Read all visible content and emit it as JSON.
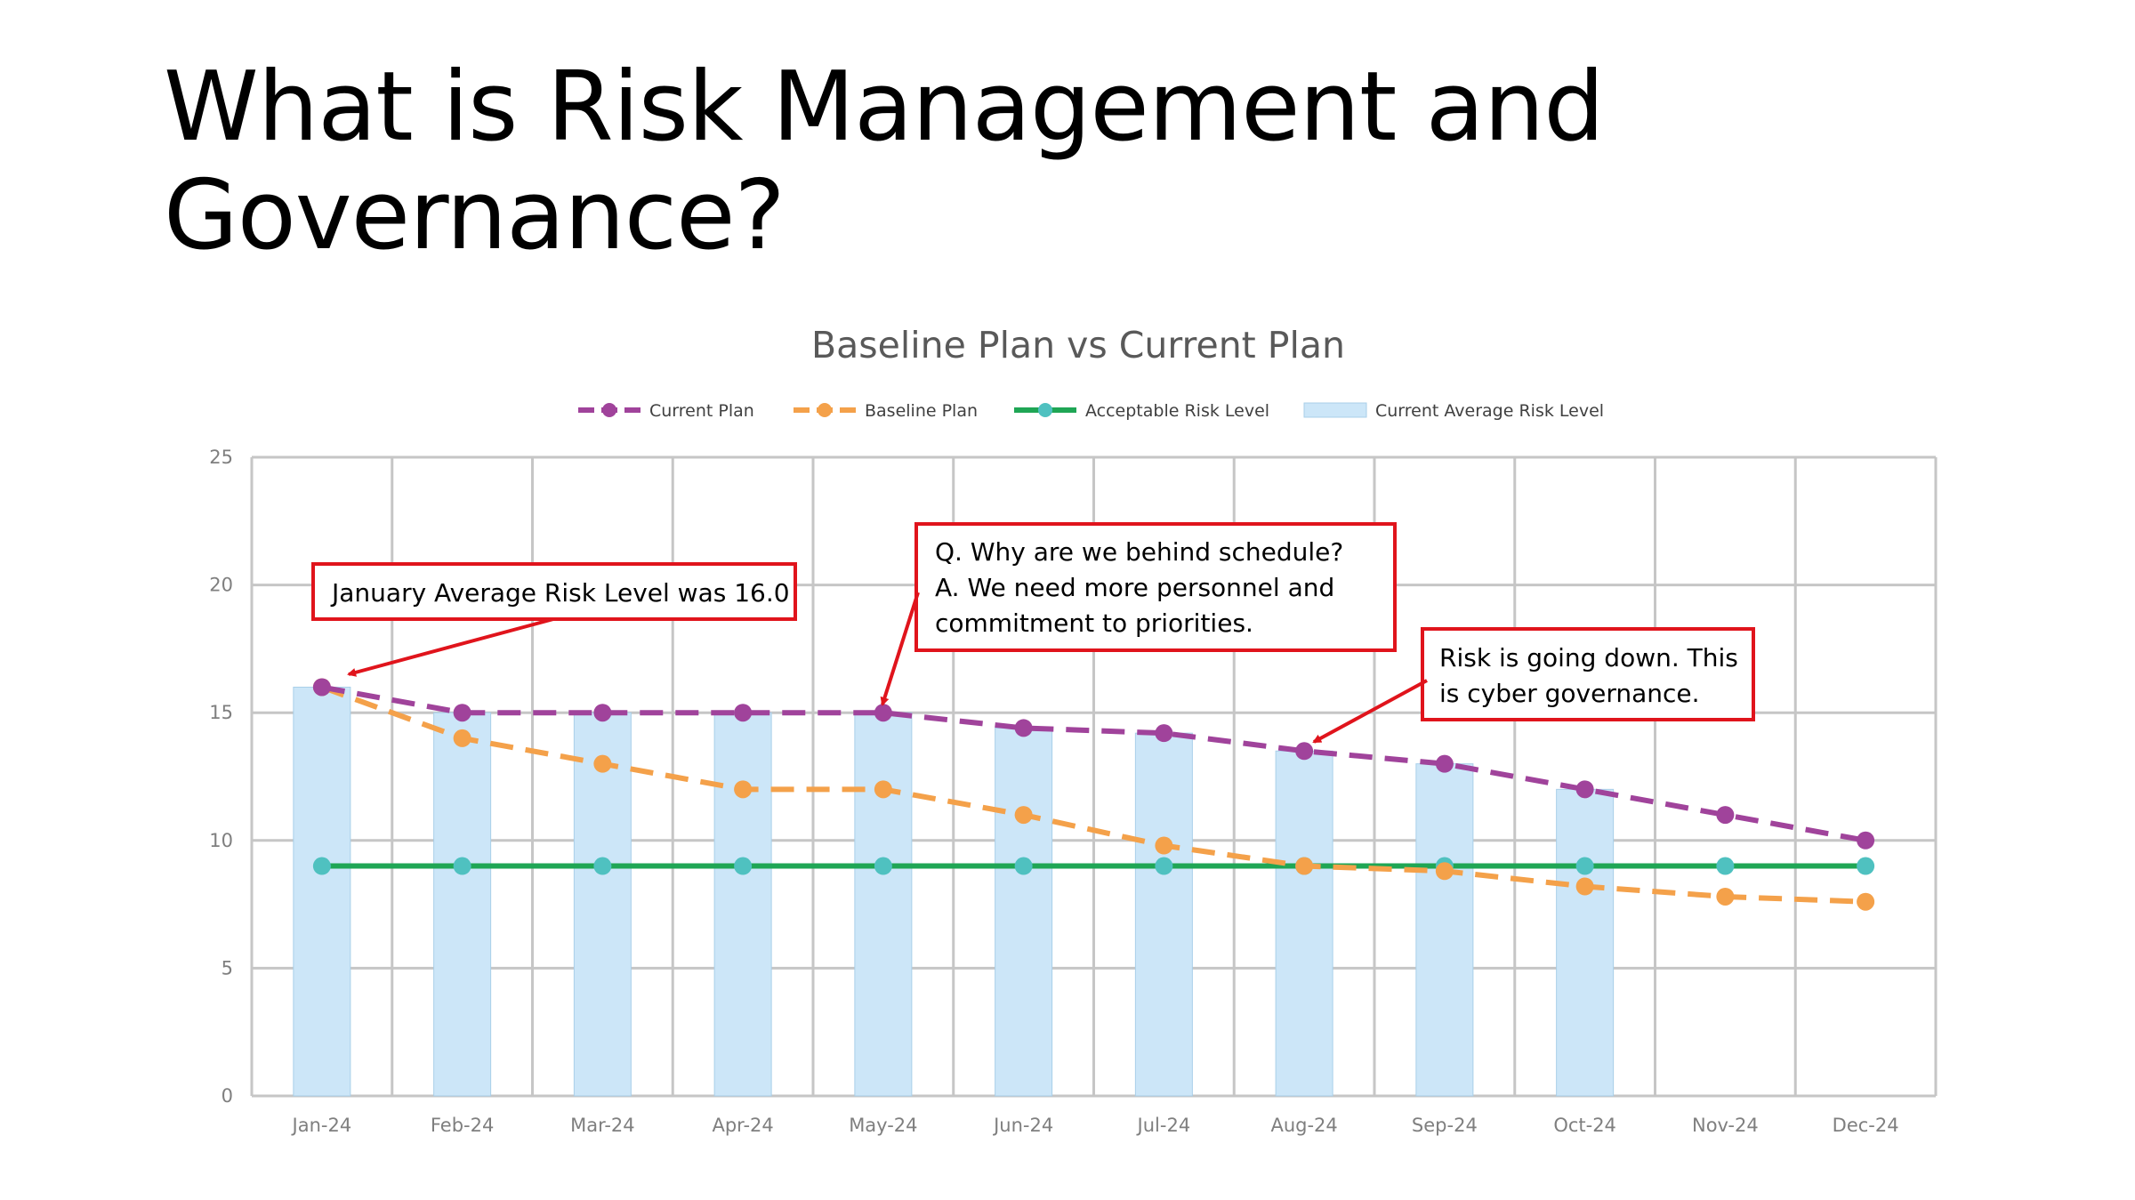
{
  "slide": {
    "title_line1": "What is Risk Management and",
    "title_line2": "Governance?"
  },
  "chart_data": {
    "type": "bar",
    "title": "Baseline Plan vs Current Plan",
    "xlabel": "",
    "ylabel": "",
    "ylim": [
      0,
      25
    ],
    "yticks": [
      0,
      5,
      10,
      15,
      20,
      25
    ],
    "grid": true,
    "legend_position": "top",
    "categories": [
      "Jan-24",
      "Feb-24",
      "Mar-24",
      "Apr-24",
      "May-24",
      "Jun-24",
      "Jul-24",
      "Aug-24",
      "Sep-24",
      "Oct-24",
      "Nov-24",
      "Dec-24"
    ],
    "series": [
      {
        "name": "Current Plan",
        "kind": "line",
        "style": "dashed",
        "color": "#a0439b",
        "values": [
          16,
          15,
          15,
          15,
          15,
          14.4,
          14.2,
          13.5,
          13,
          12,
          11,
          10
        ]
      },
      {
        "name": "Baseline Plan",
        "kind": "line",
        "style": "dashed",
        "color": "#f4a14a",
        "values": [
          16,
          14,
          13,
          12,
          12,
          11,
          9.8,
          9,
          8.8,
          8.2,
          7.8,
          7.6
        ]
      },
      {
        "name": "Acceptable Risk Level",
        "kind": "line",
        "style": "solid",
        "color": "#1fa655",
        "marker_color": "#4fc1c0",
        "values": [
          9,
          9,
          9,
          9,
          9,
          9,
          9,
          9,
          9,
          9,
          9,
          9
        ]
      },
      {
        "name": "Current Average Risk Level",
        "kind": "bar",
        "color": "#cce6f8",
        "values": [
          16,
          15,
          15,
          15,
          15,
          14.4,
          14.2,
          13.5,
          13,
          12,
          null,
          null
        ]
      }
    ],
    "annotations": [
      {
        "lines": [
          "January Average Risk Level was 16.0"
        ],
        "points_to": "Jan-24"
      },
      {
        "lines": [
          "Q. Why are we behind schedule?",
          "A. We need more personnel and",
          "commitment to priorities."
        ],
        "points_to": "May-24"
      },
      {
        "lines": [
          "Risk is going down. This",
          "is cyber governance."
        ],
        "points_to": "Aug-24"
      }
    ]
  },
  "colors": {
    "grid": "#c6c6c6",
    "callout_border": "#e0141c",
    "arrow": "#e0141c"
  }
}
